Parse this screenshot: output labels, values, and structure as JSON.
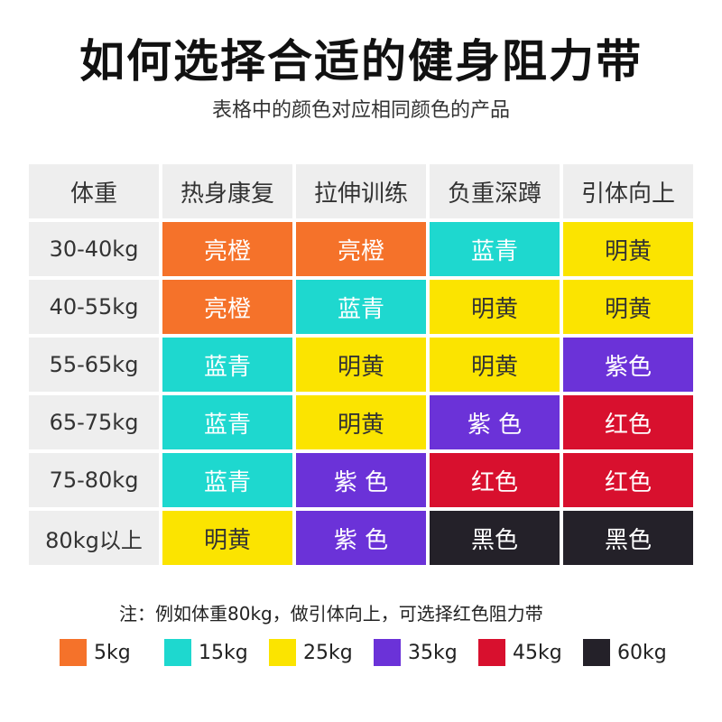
{
  "title": "如何选择合适的健身阻力带",
  "subtitle": "表格中的颜色对应相同颜色的产品",
  "colors": {
    "亮橙": "#f5722a",
    "蓝青": "#1ed8cf",
    "明黄": "#fbe400",
    "紫色": "#6b32d8",
    "紫 色": "#6b32d8",
    "红色": "#d8102e",
    "黑色": "#242129"
  },
  "table": {
    "headers": [
      "体重",
      "热身康复",
      "拉伸训练",
      "负重深蹲",
      "引体向上"
    ],
    "rows": [
      {
        "weight": "30-40kg",
        "cells": [
          "亮橙",
          "亮橙",
          "蓝青",
          "明黄"
        ]
      },
      {
        "weight": "40-55kg",
        "cells": [
          "亮橙",
          "蓝青",
          "明黄",
          "明黄"
        ]
      },
      {
        "weight": "55-65kg",
        "cells": [
          "蓝青",
          "明黄",
          "明黄",
          "紫色"
        ]
      },
      {
        "weight": "65-75kg",
        "cells": [
          "蓝青",
          "明黄",
          "紫 色",
          "红色"
        ]
      },
      {
        "weight": "75-80kg",
        "cells": [
          "蓝青",
          "紫 色",
          "红色",
          "红色"
        ]
      },
      {
        "weight": "80kg以上",
        "cells": [
          "明黄",
          "紫 色",
          "黑色",
          "黑色"
        ]
      }
    ]
  },
  "note": "注：例如体重80kg，做引体向上，可选择红色阻力带",
  "legend": [
    {
      "label": "5kg",
      "color": "#f5722a"
    },
    {
      "label": "15kg",
      "color": "#1ed8cf"
    },
    {
      "label": "25kg",
      "color": "#fbe400"
    },
    {
      "label": "35kg",
      "color": "#6b32d8"
    },
    {
      "label": "45kg",
      "color": "#d8102e"
    },
    {
      "label": "60kg",
      "color": "#242129"
    }
  ]
}
